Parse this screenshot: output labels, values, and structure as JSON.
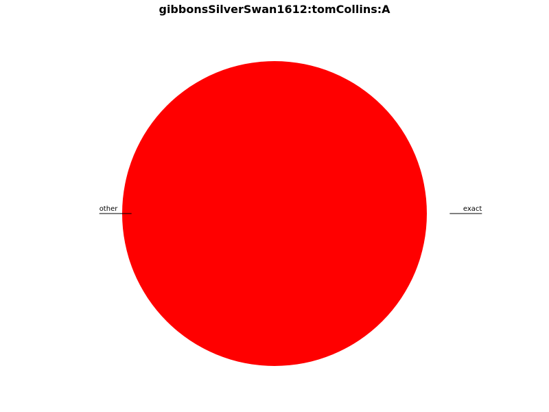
{
  "chart_data": {
    "type": "pie",
    "title": "gibbonsSilverSwan1612:tomCollins:A",
    "slices": [
      {
        "label": "exact",
        "value": 0,
        "color": "#ff0000"
      },
      {
        "label": "other",
        "value": 1,
        "color": "#ff0000"
      }
    ]
  }
}
